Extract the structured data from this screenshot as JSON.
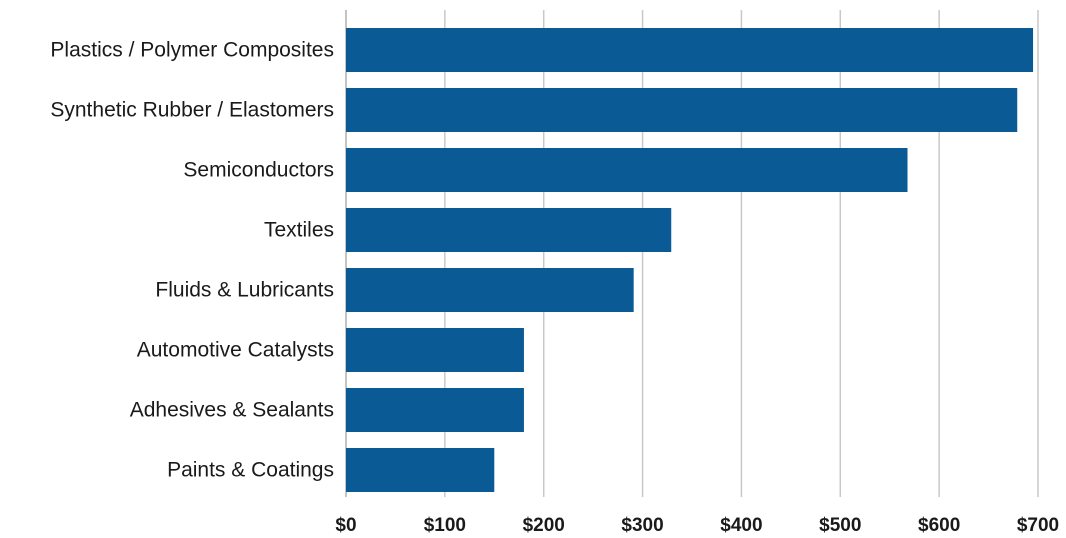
{
  "chart_data": {
    "type": "bar",
    "orientation": "horizontal",
    "title": "",
    "xlabel": "",
    "ylabel": "",
    "categories": [
      "Plastics / Polymer Composites",
      "Synthetic Rubber / Elastomers",
      "Semiconductors",
      "Textiles",
      "Fluids & Lubricants",
      "Automotive Catalysts",
      "Adhesives & Sealants",
      "Paints & Coatings"
    ],
    "values": [
      695,
      679,
      568,
      329,
      291,
      180,
      180,
      150
    ],
    "xlim": [
      0,
      700
    ],
    "x_ticks": [
      0,
      100,
      200,
      300,
      400,
      500,
      600,
      700
    ],
    "x_tick_labels": [
      "$0",
      "$100",
      "$200",
      "$300",
      "$400",
      "$500",
      "$600",
      "$700"
    ],
    "grid": "vertical",
    "legend": "none",
    "bar_color": "#0a5a96"
  }
}
